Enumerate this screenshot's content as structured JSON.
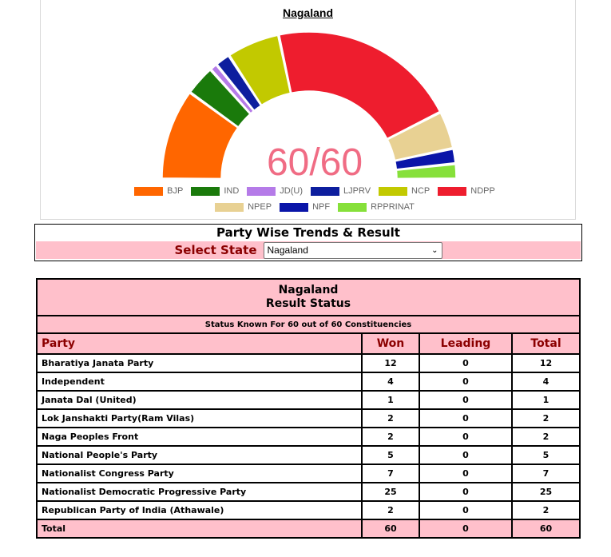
{
  "chart_data": {
    "type": "pie",
    "variant": "semi-donut",
    "title": "Nagaland",
    "center_label": "60/60",
    "categories": [
      "BJP",
      "IND",
      "JD(U)",
      "LJPRV",
      "NCP",
      "NDPP",
      "NPEP",
      "NPF",
      "RPPRINAT"
    ],
    "values": [
      12,
      4,
      1,
      2,
      7,
      25,
      5,
      2,
      2
    ],
    "colors": [
      "#ff6600",
      "#1a7a0b",
      "#b57be8",
      "#0d1e9e",
      "#c2c900",
      "#ee1d2e",
      "#e8d193",
      "#0a15a8",
      "#86e03a"
    ],
    "legend_position": "bottom"
  },
  "selector": {
    "title": "Party Wise Trends & Result",
    "label": "Select State",
    "selected": "Nagaland"
  },
  "results": {
    "state": "Nagaland",
    "subtitle": "Result Status",
    "status_text": "Status Known For 60 out of 60 Constituencies",
    "headers": {
      "party": "Party",
      "won": "Won",
      "leading": "Leading",
      "total": "Total"
    },
    "rows": [
      {
        "party": "Bharatiya Janata Party",
        "won": "12",
        "leading": "0",
        "total": "12"
      },
      {
        "party": "Independent",
        "won": "4",
        "leading": "0",
        "total": "4"
      },
      {
        "party": "Janata Dal (United)",
        "won": "1",
        "leading": "0",
        "total": "1"
      },
      {
        "party": "Lok Janshakti Party(Ram Vilas)",
        "won": "2",
        "leading": "0",
        "total": "2"
      },
      {
        "party": "Naga Peoples Front",
        "won": "2",
        "leading": "0",
        "total": "2"
      },
      {
        "party": "National People's Party",
        "won": "5",
        "leading": "0",
        "total": "5"
      },
      {
        "party": "Nationalist Congress Party",
        "won": "7",
        "leading": "0",
        "total": "7"
      },
      {
        "party": "Nationalist Democratic Progressive Party",
        "won": "25",
        "leading": "0",
        "total": "25"
      },
      {
        "party": "Republican Party of India (Athawale)",
        "won": "2",
        "leading": "0",
        "total": "2"
      }
    ],
    "total": {
      "party": "Total",
      "won": "60",
      "leading": "0",
      "total": "60"
    }
  }
}
